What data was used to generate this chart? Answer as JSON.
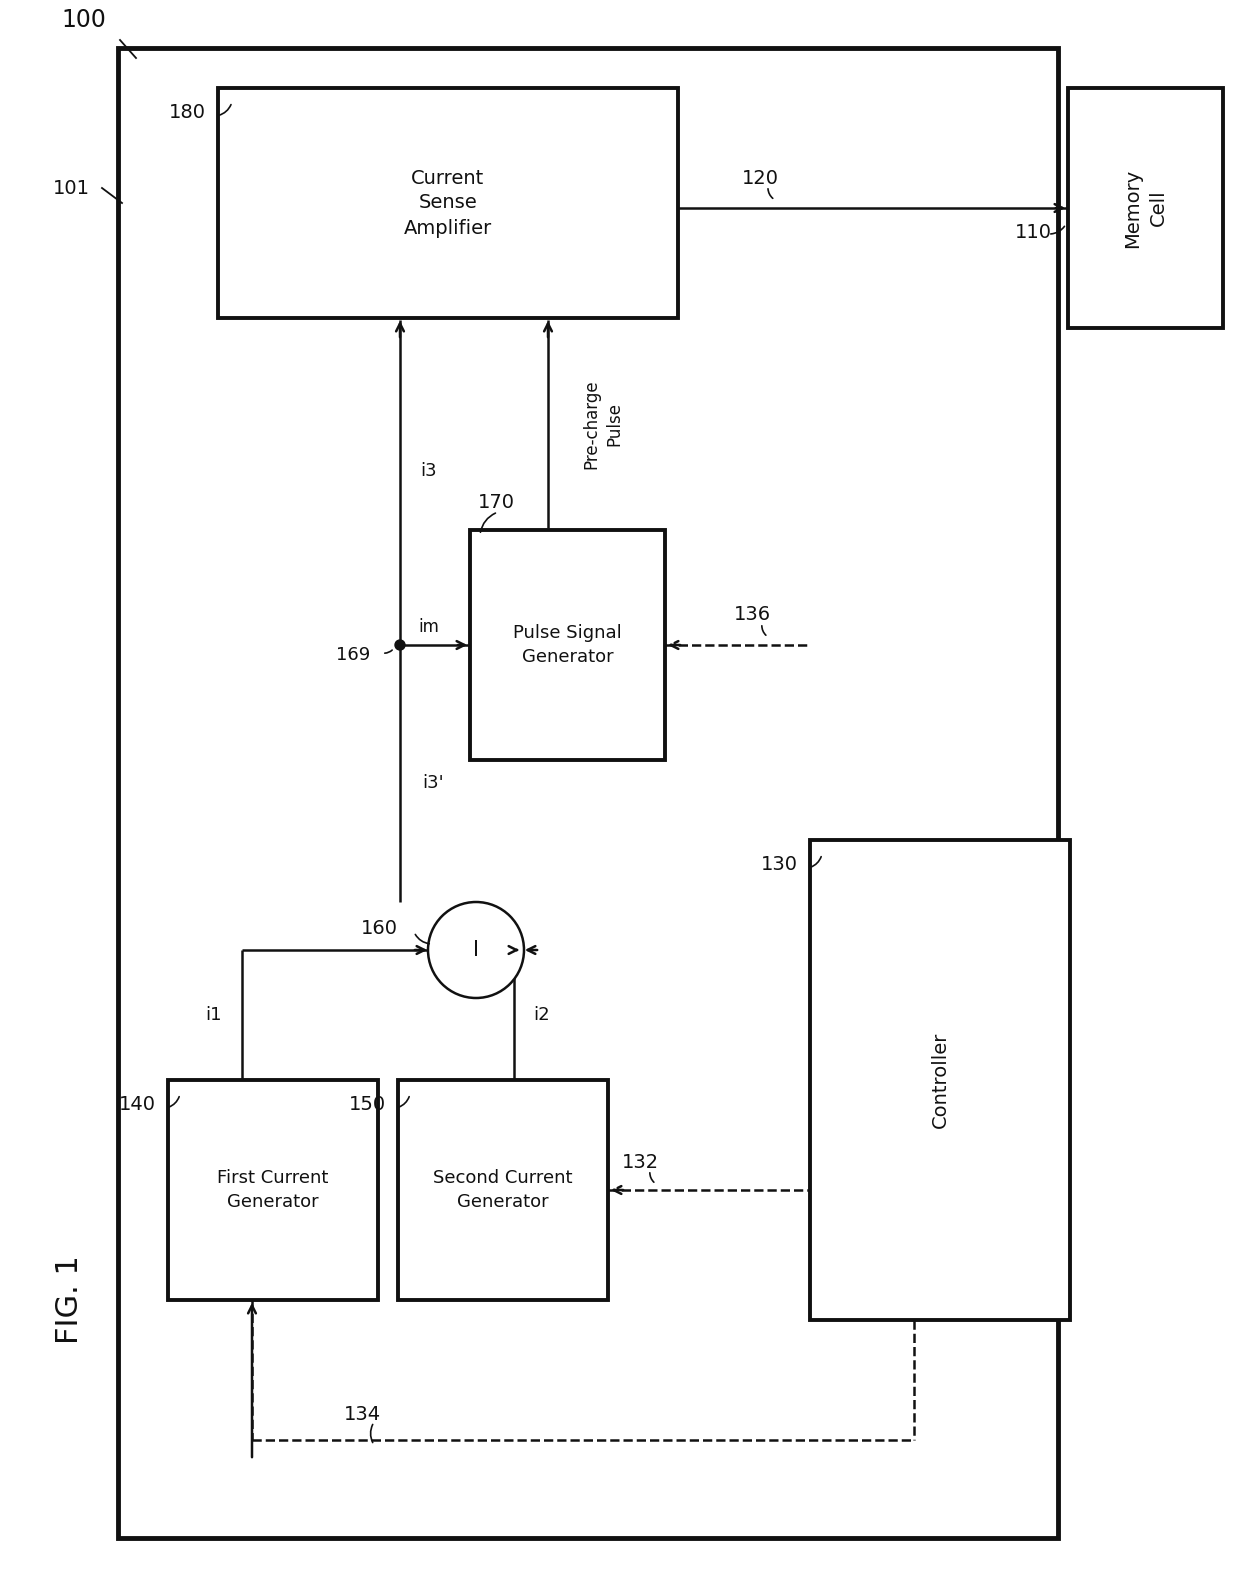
{
  "bg": "#ffffff",
  "lc": "#111111",
  "blocks": {
    "outer": [
      118,
      48,
      940,
      1490
    ],
    "memory": [
      1068,
      88,
      155,
      240
    ],
    "csa": [
      218,
      88,
      460,
      230
    ],
    "psg": [
      470,
      530,
      195,
      230
    ],
    "ctrl": [
      810,
      840,
      260,
      480
    ],
    "fcg": [
      168,
      1080,
      210,
      220
    ],
    "scg": [
      398,
      1080,
      210,
      220
    ]
  },
  "adder": [
    476,
    950,
    48
  ],
  "VX": 400,
  "texts": {
    "memory": "Memory\nCell",
    "csa": "Current\nSense\nAmplifier",
    "psg": "Pulse Signal\nGenerator",
    "ctrl": "Controller",
    "fcg": "First Current\nGenerator",
    "scg": "Second Current\nGenerator"
  },
  "fig_label": "FIG. 1",
  "lbl_100": "100",
  "lbl_101": "101",
  "lbl_110": "110",
  "lbl_120": "120",
  "lbl_130": "130",
  "lbl_132": "132",
  "lbl_134": "134",
  "lbl_136": "136",
  "lbl_140": "140",
  "lbl_150": "150",
  "lbl_160": "160",
  "lbl_169": "169",
  "lbl_170": "170",
  "lbl_180": "180",
  "lbl_i1": "i1",
  "lbl_i2": "i2",
  "lbl_i3": "i3",
  "lbl_i3p": "i3'",
  "lbl_im": "im",
  "lbl_precharge": "Pre-charge\nPulse"
}
